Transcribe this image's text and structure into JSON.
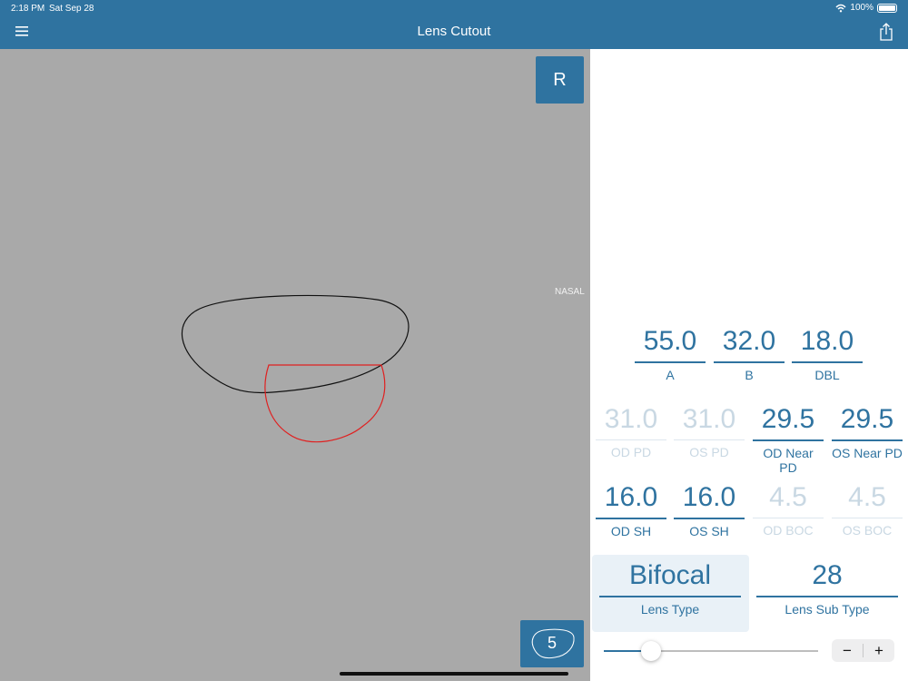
{
  "status": {
    "time": "2:18 PM",
    "date": "Sat Sep 28",
    "battery": "100%"
  },
  "header": {
    "title": "Lens Cutout",
    "menu_icon": "hamburger-icon",
    "share_icon": "share-icon"
  },
  "canvas": {
    "eye": "R",
    "nasal_label": "NASAL",
    "shape_count": "5"
  },
  "measurements": {
    "a": {
      "value": "55.0",
      "label": "A"
    },
    "b": {
      "value": "32.0",
      "label": "B"
    },
    "dbl": {
      "value": "18.0",
      "label": "DBL"
    },
    "od_pd": {
      "value": "31.0",
      "label": "OD PD"
    },
    "os_pd": {
      "value": "31.0",
      "label": "OS PD"
    },
    "od_near_pd": {
      "value": "29.5",
      "label": "OD Near PD"
    },
    "os_near_pd": {
      "value": "29.5",
      "label": "OS Near PD"
    },
    "od_sh": {
      "value": "16.0",
      "label": "OD SH"
    },
    "os_sh": {
      "value": "16.0",
      "label": "OS SH"
    },
    "od_boc": {
      "value": "4.5",
      "label": "OD BOC"
    },
    "os_boc": {
      "value": "4.5",
      "label": "OS BOC"
    }
  },
  "lens": {
    "type": {
      "value": "Bifocal",
      "label": "Lens Type"
    },
    "sub_type": {
      "value": "28",
      "label": "Lens Sub Type"
    }
  },
  "slider": {
    "level": 0.22
  },
  "stepper": {
    "minus": "−",
    "plus": "+"
  },
  "colors": {
    "accent": "#2f73a0",
    "canvas": "#a9a9a9",
    "segment": "#e02020"
  }
}
